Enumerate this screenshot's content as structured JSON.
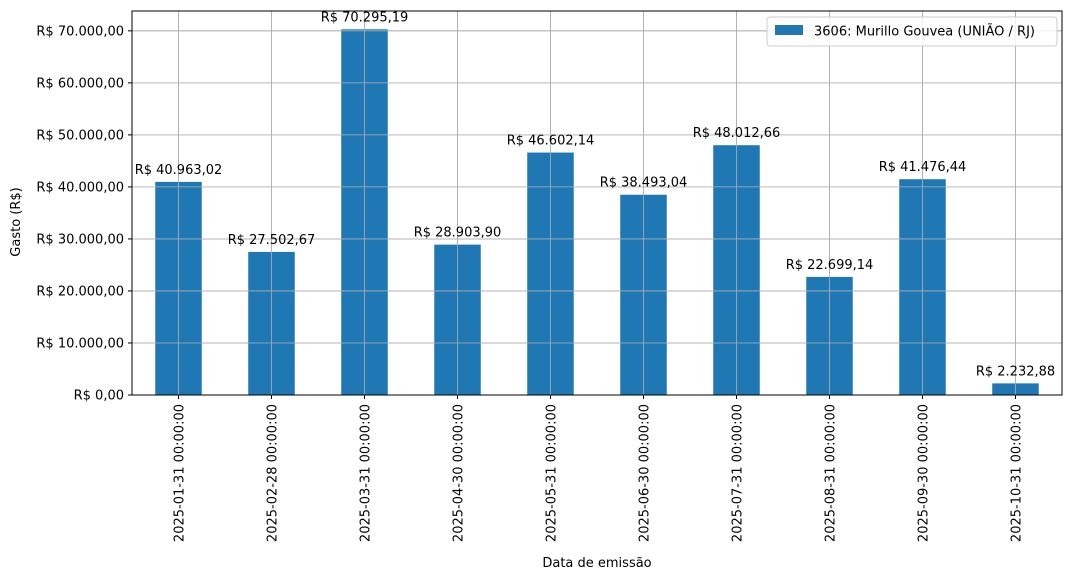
{
  "chart_data": {
    "type": "bar",
    "categories": [
      "2025-01-31 00:00:00",
      "2025-02-28 00:00:00",
      "2025-03-31 00:00:00",
      "2025-04-30 00:00:00",
      "2025-05-31 00:00:00",
      "2025-06-30 00:00:00",
      "2025-07-31 00:00:00",
      "2025-08-31 00:00:00",
      "2025-09-30 00:00:00",
      "2025-10-31 00:00:00"
    ],
    "series": [
      {
        "name": "3606: Murillo Gouvea (UNIÃO / RJ)",
        "color": "#1f77b4",
        "values": [
          40963.02,
          27502.67,
          70295.19,
          28903.9,
          46602.14,
          38493.04,
          48012.66,
          22699.14,
          41476.44,
          2232.88
        ],
        "data_labels": [
          "R$ 40.963,02",
          "R$ 27.502,67",
          "R$ 70.295,19",
          "R$ 28.903,90",
          "R$ 46.602,14",
          "R$ 38.493,04",
          "R$ 48.012,66",
          "R$ 22.699,14",
          "R$ 41.476,44",
          "R$ 2.232,88"
        ]
      }
    ],
    "xlabel": "Data de emissão",
    "ylabel": "Gasto (R$)",
    "ylim": [
      0,
      73810
    ],
    "yticks": [
      0,
      10000,
      20000,
      30000,
      40000,
      50000,
      60000,
      70000
    ],
    "ytick_labels": [
      "R$ 0,00",
      "R$ 10.000,00",
      "R$ 20.000,00",
      "R$ 30.000,00",
      "R$ 40.000,00",
      "R$ 50.000,00",
      "R$ 60.000,00",
      "R$ 70.000,00"
    ],
    "grid": true,
    "legend_position": "top-right"
  }
}
